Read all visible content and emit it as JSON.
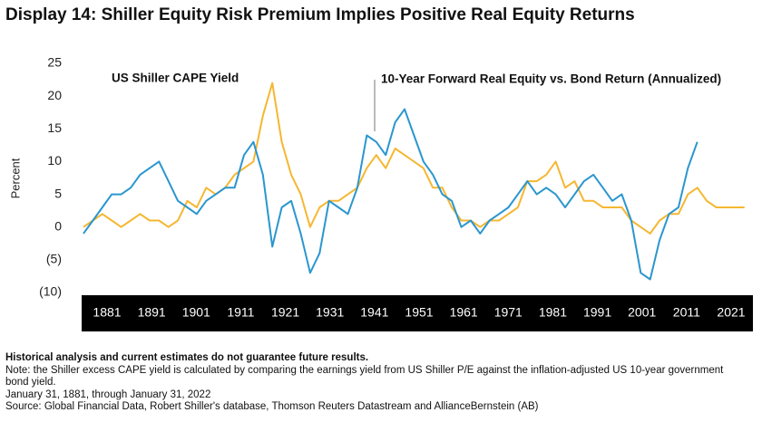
{
  "chart_data": {
    "type": "line",
    "title": "Display 14: Shiller Equity Risk Premium Implies Positive Real Equity Returns",
    "y_label": "Percent",
    "annotations": [
      "US Shiller CAPE Yield",
      "10-Year Forward Real Equity vs. Bond Return (Annualized)"
    ],
    "x": [
      1881,
      1883,
      1885,
      1887,
      1889,
      1891,
      1893,
      1895,
      1897,
      1899,
      1901,
      1903,
      1905,
      1907,
      1909,
      1911,
      1913,
      1915,
      1917,
      1919,
      1921,
      1923,
      1925,
      1927,
      1929,
      1931,
      1933,
      1935,
      1937,
      1939,
      1941,
      1943,
      1945,
      1947,
      1949,
      1951,
      1953,
      1955,
      1957,
      1959,
      1961,
      1963,
      1965,
      1967,
      1969,
      1971,
      1973,
      1975,
      1977,
      1979,
      1981,
      1983,
      1985,
      1987,
      1989,
      1991,
      1993,
      1995,
      1997,
      1999,
      2001,
      2003,
      2005,
      2007,
      2009,
      2011,
      2013,
      2015,
      2017,
      2019,
      2021
    ],
    "series": [
      {
        "name": "US Shiller CAPE Yield",
        "color": "#f5b731",
        "values": [
          0,
          1,
          2,
          1,
          0,
          1,
          2,
          1,
          1,
          0,
          1,
          4,
          3,
          6,
          5,
          6,
          8,
          9,
          10,
          17,
          22,
          13,
          8,
          5,
          0,
          3,
          4,
          4,
          5,
          6,
          9,
          11,
          9,
          12,
          11,
          10,
          9,
          6,
          6,
          3,
          1,
          1,
          0,
          1,
          1,
          2,
          3,
          7,
          7,
          8,
          10,
          6,
          7,
          4,
          4,
          3,
          3,
          3,
          1,
          0,
          -1,
          1,
          2,
          2,
          5,
          6,
          4,
          3,
          3,
          3,
          3
        ]
      },
      {
        "name": "10-Year Forward Real Equity vs. Bond Return (Annualized)",
        "color": "#2a96cf",
        "values": [
          -1,
          1,
          3,
          5,
          5,
          6,
          8,
          9,
          10,
          7,
          4,
          3,
          2,
          4,
          5,
          6,
          6,
          11,
          13,
          8,
          -3,
          3,
          4,
          -1,
          -7,
          -4,
          4,
          3,
          2,
          6,
          14,
          13,
          11,
          16,
          18,
          14,
          10,
          8,
          5,
          4,
          0,
          1,
          -1,
          1,
          2,
          3,
          5,
          7,
          5,
          6,
          5,
          3,
          5,
          7,
          8,
          6,
          4,
          5,
          1,
          -7,
          -8,
          -2,
          2,
          3,
          9,
          13,
          null,
          null,
          null,
          null,
          null
        ]
      }
    ],
    "xlim": [
      1881,
      2022
    ],
    "xticks": [
      1881,
      1891,
      1901,
      1911,
      1921,
      1931,
      1941,
      1951,
      1961,
      1971,
      1981,
      1991,
      2001,
      2011,
      2021
    ],
    "ylim": [
      -10,
      25
    ],
    "yticks": [
      25,
      20,
      15,
      10,
      5,
      0,
      {
        "value": -5,
        "label": "(5)"
      },
      {
        "value": -10,
        "label": "(10)"
      }
    ],
    "grid": false
  },
  "notes": [
    "Historical analysis and current estimates do not guarantee future results.",
    "Note: the Shiller excess CAPE yield is calculated by comparing the earnings yield from US Shiller P/E against the inflation-adjusted US 10-year government bond yield.",
    "January 31, 1881, through January 31, 2022",
    "Source:  Global Financial Data, Robert Shiller's database, Thomson Reuters Datastream and AllianceBernstein (AB)"
  ]
}
